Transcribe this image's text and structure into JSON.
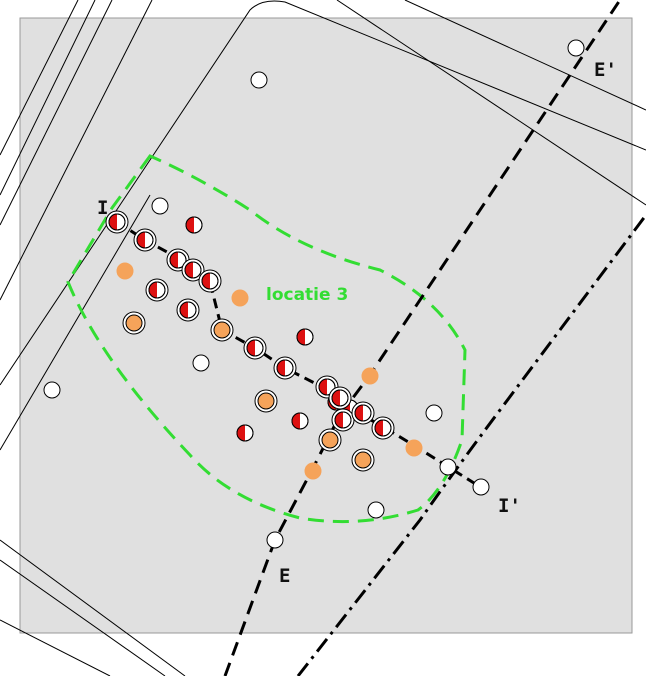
{
  "map": {
    "area_label": "locatie 3",
    "area_color": "#33dd33",
    "background_color": "#e0e0e0",
    "profiles": [
      {
        "start_label": "I",
        "end_label": "I'"
      },
      {
        "start_label": "E",
        "end_label": "E'"
      }
    ],
    "symbols": {
      "white_point": "#ffffff",
      "orange_point": "#f5a35a",
      "half_red_point_left": "#dd1111",
      "half_red_point_right": "#ffffff",
      "ringed_point_ring": "#ffffff"
    }
  }
}
